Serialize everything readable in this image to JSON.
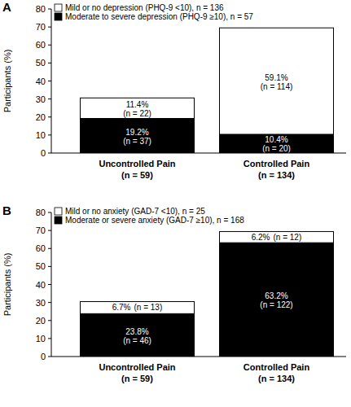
{
  "chart_data": [
    {
      "type": "bar",
      "panel": "A",
      "stacked": true,
      "data_labels": true,
      "legend": "upper left",
      "grid": false,
      "y_label": "Participants (%)",
      "categories": [
        "Uncontrolled Pain\n(n = 59)",
        "Controlled Pain\n(n = 134)"
      ],
      "ylim": [
        0,
        80
      ],
      "yticks": [
        0,
        10,
        20,
        30,
        40,
        50,
        60,
        70,
        80
      ],
      "series": [
        {
          "name": "Moderate to severe depression (PHQ-9 ≥10), n = 57",
          "color": "#000000",
          "values": [
            19.2,
            10.4
          ],
          "value_labels": [
            "19.2%",
            "10.4%"
          ],
          "n_labels": [
            "(n = 37)",
            "(n = 20)"
          ]
        },
        {
          "name": "Mild or no depression (PHQ-9 <10), n = 136",
          "color": "#ffffff",
          "values": [
            11.4,
            59.1
          ],
          "value_labels": [
            "11.4%",
            "59.1%"
          ],
          "n_labels": [
            "(n = 22)",
            "(n = 114)"
          ]
        }
      ]
    },
    {
      "type": "bar",
      "panel": "B",
      "stacked": true,
      "data_labels": true,
      "legend": "upper left",
      "grid": false,
      "y_label": "Participants (%)",
      "categories": [
        "Uncontrolled Pain\n(n = 59)",
        "Controlled Pain\n(n = 134)"
      ],
      "ylim": [
        0,
        80
      ],
      "yticks": [
        0,
        10,
        20,
        30,
        40,
        50,
        60,
        70,
        80
      ],
      "series": [
        {
          "name": "Moderate or severe anxiety (GAD-7 ≥10), n = 168",
          "color": "#000000",
          "values": [
            23.8,
            63.2
          ],
          "value_labels": [
            "23.8%",
            "63.2%"
          ],
          "n_labels": [
            "(n = 46)",
            "(n = 122)"
          ]
        },
        {
          "name": "Mild or no anxiety (GAD-7 <10), n = 25",
          "color": "#ffffff",
          "values": [
            6.7,
            6.2
          ],
          "value_labels": [
            "6.7%",
            "6.2%"
          ],
          "n_labels": [
            "(n = 13)",
            "(n = 12)"
          ]
        }
      ]
    }
  ]
}
